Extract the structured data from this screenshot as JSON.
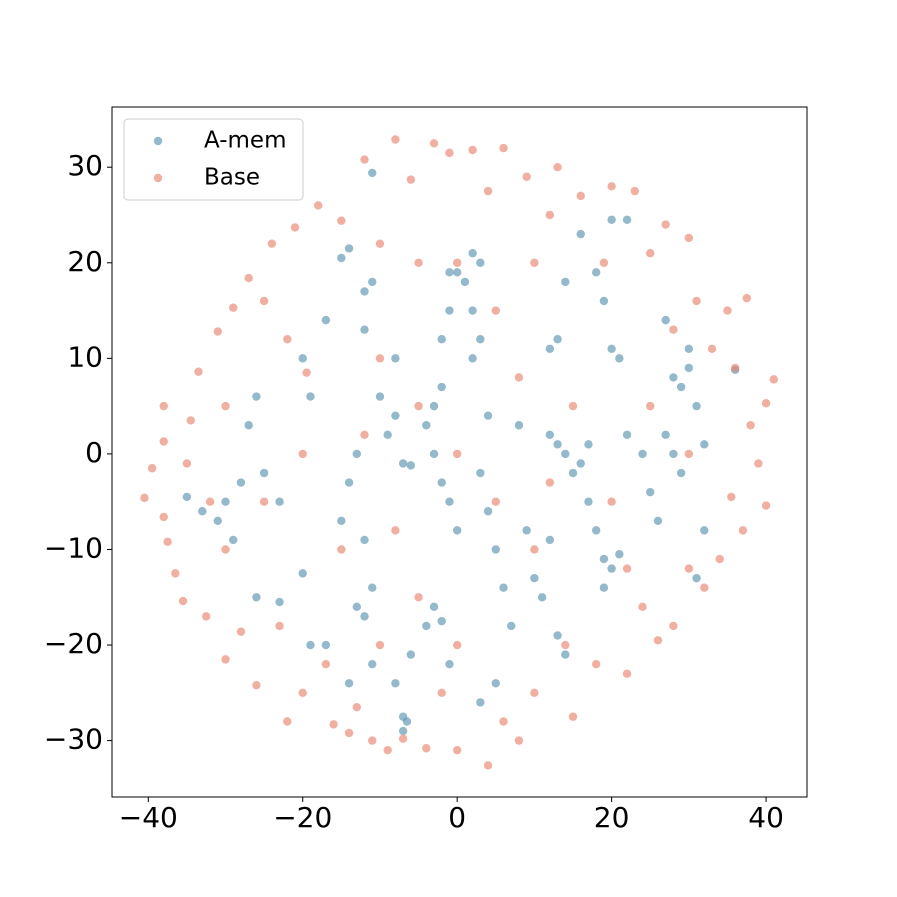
{
  "chart_data": {
    "type": "scatter",
    "xlim": [
      -44.7,
      45.3
    ],
    "ylim": [
      -35.9,
      36.3
    ],
    "xticks": [
      {
        "value": -40,
        "label": "−40"
      },
      {
        "value": -20,
        "label": "−20"
      },
      0,
      20,
      40
    ],
    "yticks": [
      {
        "value": -30,
        "label": "−30"
      },
      {
        "value": -20,
        "label": "−20"
      },
      {
        "value": -10,
        "label": "−10"
      },
      0,
      10,
      20,
      30
    ],
    "legend": "upper left",
    "grid": false,
    "series": [
      {
        "name": "A-mem",
        "color": "#5b93ad",
        "x": [
          -35,
          -33,
          -30,
          -31,
          -29,
          -28,
          -27,
          -26,
          -25,
          -23,
          -26,
          -23,
          -20,
          -19,
          -17,
          -20,
          -19,
          -17,
          -15,
          -14,
          -12,
          -11,
          -11,
          -12,
          -10,
          -8,
          -9,
          -7,
          -6,
          -8,
          -13,
          -14,
          -15,
          -12,
          -11,
          -13,
          -12,
          -14,
          -11,
          -8,
          -7,
          -6.5,
          -7,
          -6,
          -4,
          -3,
          -2,
          -1,
          0,
          -1,
          -2,
          -3,
          -4,
          -3,
          -2,
          -2,
          -1,
          -1,
          0,
          1,
          2,
          3,
          2,
          3,
          2,
          4,
          3,
          4,
          5,
          6,
          7,
          5,
          3,
          8,
          9,
          10,
          11,
          13,
          14,
          12,
          12,
          13,
          14,
          15,
          16,
          17,
          12,
          13,
          14,
          16,
          18,
          19,
          20,
          21,
          20,
          22,
          17,
          18,
          19,
          20,
          21,
          19,
          22,
          24,
          25,
          26,
          27,
          28,
          29,
          28,
          29,
          30,
          30,
          31,
          32,
          32,
          31,
          27,
          36
        ],
        "y": [
          -4.5,
          -6,
          -5,
          -7,
          -9,
          -3,
          3,
          6,
          -2,
          -5,
          -15,
          -15.5,
          -12.5,
          -20,
          -20,
          10,
          6,
          14,
          20.5,
          21.5,
          17,
          18,
          29.4,
          13,
          6,
          10,
          2,
          -1,
          -1.2,
          4,
          0,
          -3,
          -7,
          -9,
          -14,
          -16,
          -17,
          -24,
          -22,
          -24,
          -27.5,
          -28,
          -29,
          -21,
          -18,
          -16,
          -17.5,
          -22,
          -8,
          -5,
          -3,
          0,
          3,
          5,
          7,
          12,
          15,
          19,
          19,
          18,
          21,
          20,
          15,
          12,
          10,
          4,
          -2,
          -6,
          -10,
          -14,
          -18,
          -24,
          -26,
          3,
          -8,
          -13,
          -15,
          -19,
          -21,
          -9,
          2,
          1,
          0,
          -2,
          -1,
          1,
          11,
          12,
          18,
          23,
          19,
          16,
          11,
          10,
          24.5,
          24.5,
          -5,
          -8,
          -11,
          -12,
          -10.5,
          -14,
          2,
          0,
          -4,
          -7,
          2,
          0,
          -2,
          8,
          7,
          9,
          11,
          5,
          1,
          -8,
          -13,
          14,
          8.8
        ]
      },
      {
        "name": "Base",
        "color": "#e8846f",
        "x": [
          -40.5,
          -39.5,
          -38,
          -38,
          -38,
          -37.5,
          -36.5,
          -35.5,
          -35,
          -34.5,
          -33.5,
          -32.5,
          -32,
          -31,
          -30,
          -30,
          -29,
          -28,
          -27,
          -26,
          -25,
          -24,
          -23,
          -22,
          -21,
          -20,
          -19.5,
          -18,
          -17,
          -16,
          -15,
          -14,
          -13,
          -12,
          -11,
          -10,
          -9,
          -8,
          -7,
          -6,
          -5,
          -4,
          -3,
          -2,
          0,
          -1,
          2,
          4,
          4,
          6,
          6,
          8,
          9,
          10,
          12,
          13,
          14,
          15,
          16,
          18,
          19,
          20,
          22,
          23,
          24,
          25,
          26,
          27,
          28,
          28,
          30,
          30,
          31,
          32,
          33,
          34,
          35,
          35.5,
          36,
          37,
          37.5,
          38,
          39,
          40,
          40,
          41,
          -20,
          -10,
          0,
          10,
          -15,
          5,
          15,
          -5,
          20,
          -25,
          25,
          0,
          0,
          -10,
          10,
          -30,
          30,
          -5,
          5,
          -12,
          12,
          -22,
          22,
          -8,
          8
        ],
        "y": [
          -4.6,
          -1.5,
          1.3,
          5,
          -6.6,
          -9.2,
          -12.5,
          -15.4,
          -1,
          3.5,
          8.6,
          -17,
          -5,
          12.8,
          -21.5,
          5,
          15.3,
          -18.6,
          18.4,
          -24.2,
          16,
          22,
          -18,
          -28,
          23.7,
          -25,
          8.5,
          26,
          -22,
          -28.3,
          24.4,
          -29.2,
          -26.5,
          30.8,
          -30,
          22,
          -31,
          32.9,
          -29.8,
          28.7,
          20,
          -30.8,
          32.5,
          -25,
          -31,
          31.5,
          31.8,
          -32.6,
          27.5,
          32,
          -28,
          -30,
          29,
          -25,
          25,
          30,
          -20,
          -27.5,
          27,
          -22,
          20,
          28,
          -23,
          27.5,
          -16,
          21,
          -19.5,
          24,
          -18,
          13,
          22.6,
          -12,
          16,
          -14,
          11,
          -11,
          15,
          -4.5,
          9,
          -8,
          16.3,
          3,
          -1,
          5.3,
          -5.4,
          7.8,
          0,
          10,
          0,
          -10,
          -10,
          15,
          5,
          -15,
          -5,
          -5,
          5,
          20,
          -20,
          -20,
          20,
          -10,
          0,
          5,
          -5,
          2,
          -3,
          12,
          -12,
          -8,
          8
        ]
      }
    ]
  }
}
